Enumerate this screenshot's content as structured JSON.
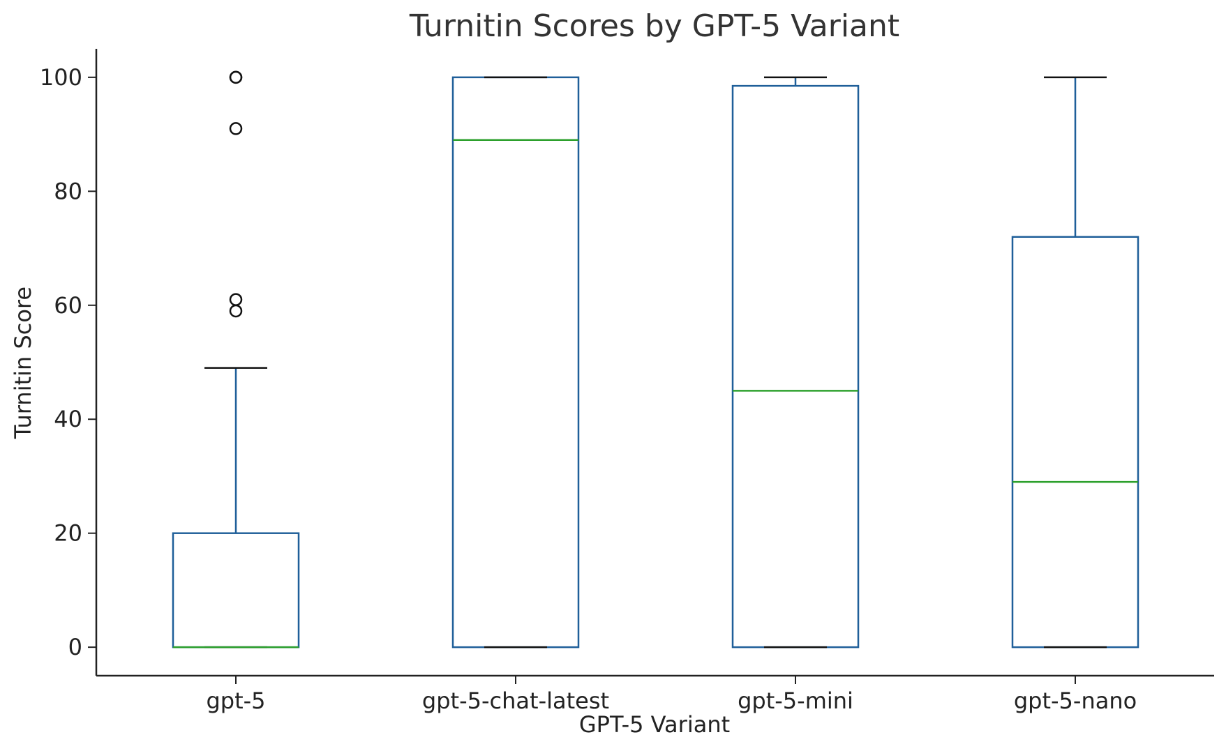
{
  "chart_data": {
    "type": "box",
    "title": "Turnitin Scores by GPT-5 Variant",
    "xlabel": "GPT-5 Variant",
    "ylabel": "Turnitin Score",
    "ylim": [
      -5,
      105
    ],
    "yticks": [
      0,
      20,
      40,
      60,
      80,
      100
    ],
    "grid": false,
    "categories": [
      "gpt-5",
      "gpt-5-chat-latest",
      "gpt-5-mini",
      "gpt-5-nano"
    ],
    "boxes": [
      {
        "category": "gpt-5",
        "whisker_low": 0,
        "q1": 0,
        "median": 0,
        "q3": 20,
        "whisker_high": 49,
        "outliers": [
          59,
          61,
          91,
          100,
          100
        ]
      },
      {
        "category": "gpt-5-chat-latest",
        "whisker_low": 0,
        "q1": 0,
        "median": 89,
        "q3": 100,
        "whisker_high": 100,
        "outliers": []
      },
      {
        "category": "gpt-5-mini",
        "whisker_low": 0,
        "q1": 0,
        "median": 45,
        "q3": 98.5,
        "whisker_high": 100,
        "outliers": []
      },
      {
        "category": "gpt-5-nano",
        "whisker_low": 0,
        "q1": 0,
        "median": 29,
        "q3": 72,
        "whisker_high": 100,
        "outliers": []
      }
    ],
    "colors": {
      "box": "#1f5f99",
      "median": "#2ca02c",
      "cap": "#111111",
      "outlier": "#111111",
      "axis": "#222222"
    }
  }
}
